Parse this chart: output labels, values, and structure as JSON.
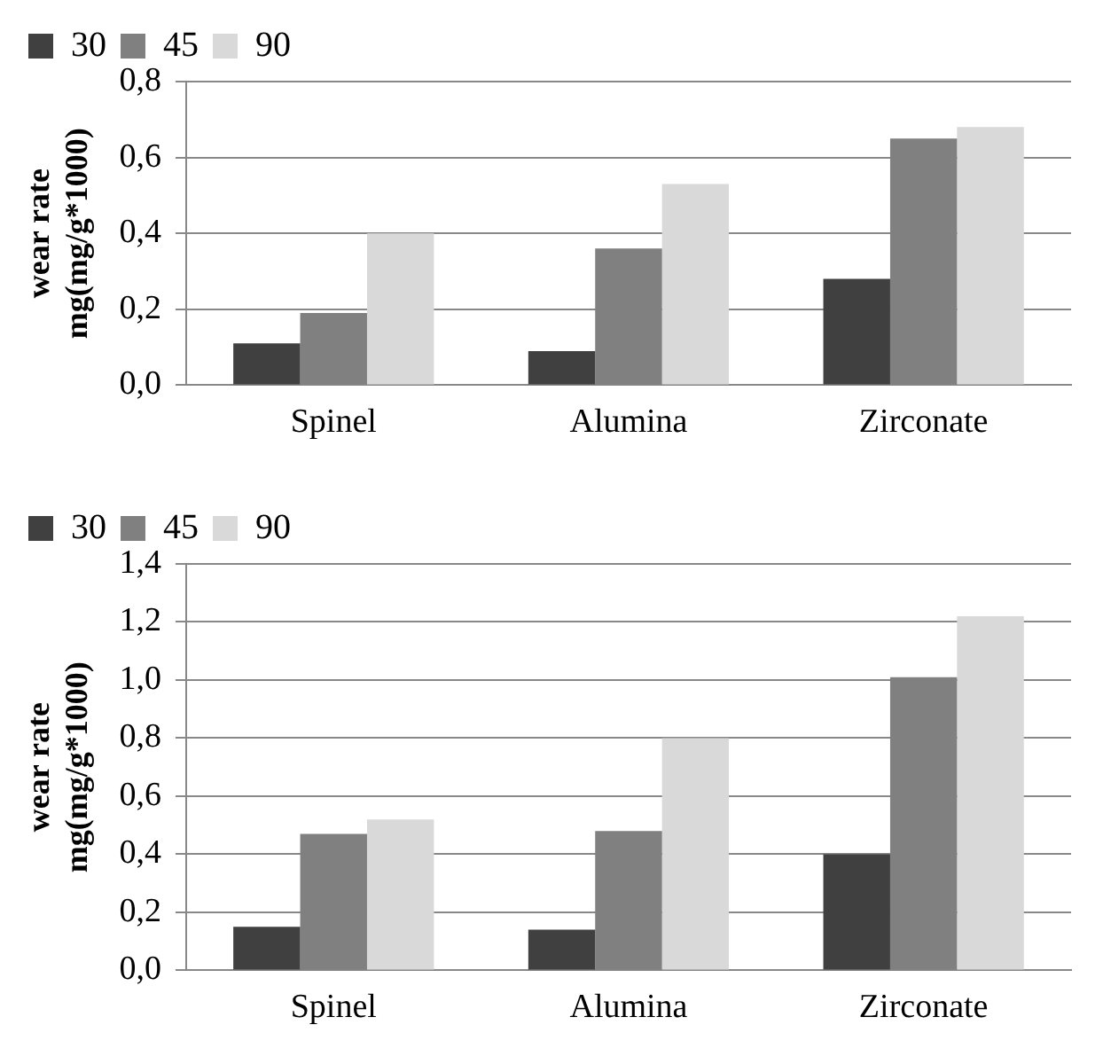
{
  "chart_data": [
    {
      "type": "bar",
      "ylabel": "wear rate\nmg(mg/g*1000)",
      "categories": [
        "Spinel",
        "Alumina",
        "Zirconate"
      ],
      "series": [
        {
          "name": "30",
          "color": "#404040",
          "values": [
            0.11,
            0.09,
            0.28
          ]
        },
        {
          "name": "45",
          "color": "#808080",
          "values": [
            0.19,
            0.36,
            0.65
          ]
        },
        {
          "name": "90",
          "color": "#d9d9d9",
          "values": [
            0.4,
            0.53,
            0.68
          ]
        }
      ],
      "ylim": [
        0,
        0.8
      ],
      "yticks": [
        {
          "value": 0,
          "label": "0,0"
        },
        {
          "value": 0.2,
          "label": "0,2"
        },
        {
          "value": 0.4,
          "label": "0,4"
        },
        {
          "value": 0.6,
          "label": "0,6"
        },
        {
          "value": 0.8,
          "label": "0,8"
        }
      ],
      "grid": "y",
      "legend": "top left"
    },
    {
      "type": "bar",
      "ylabel": "wear rate\nmg(mg/g*1000)",
      "categories": [
        "Spinel",
        "Alumina",
        "Zirconate"
      ],
      "series": [
        {
          "name": "30",
          "color": "#404040",
          "values": [
            0.15,
            0.14,
            0.4
          ]
        },
        {
          "name": "45",
          "color": "#808080",
          "values": [
            0.47,
            0.48,
            1.01
          ]
        },
        {
          "name": "90",
          "color": "#d9d9d9",
          "values": [
            0.52,
            0.8,
            1.22
          ]
        }
      ],
      "ylim": [
        0,
        1.4
      ],
      "yticks": [
        {
          "value": 0,
          "label": "0,0"
        },
        {
          "value": 0.2,
          "label": "0,2"
        },
        {
          "value": 0.4,
          "label": "0,4"
        },
        {
          "value": 0.6,
          "label": "0,6"
        },
        {
          "value": 0.8,
          "label": "0,8"
        },
        {
          "value": 1.0,
          "label": "1,0"
        },
        {
          "value": 1.2,
          "label": "1,2"
        },
        {
          "value": 1.4,
          "label": "1,4"
        }
      ],
      "grid": "y",
      "legend": "top left"
    }
  ]
}
